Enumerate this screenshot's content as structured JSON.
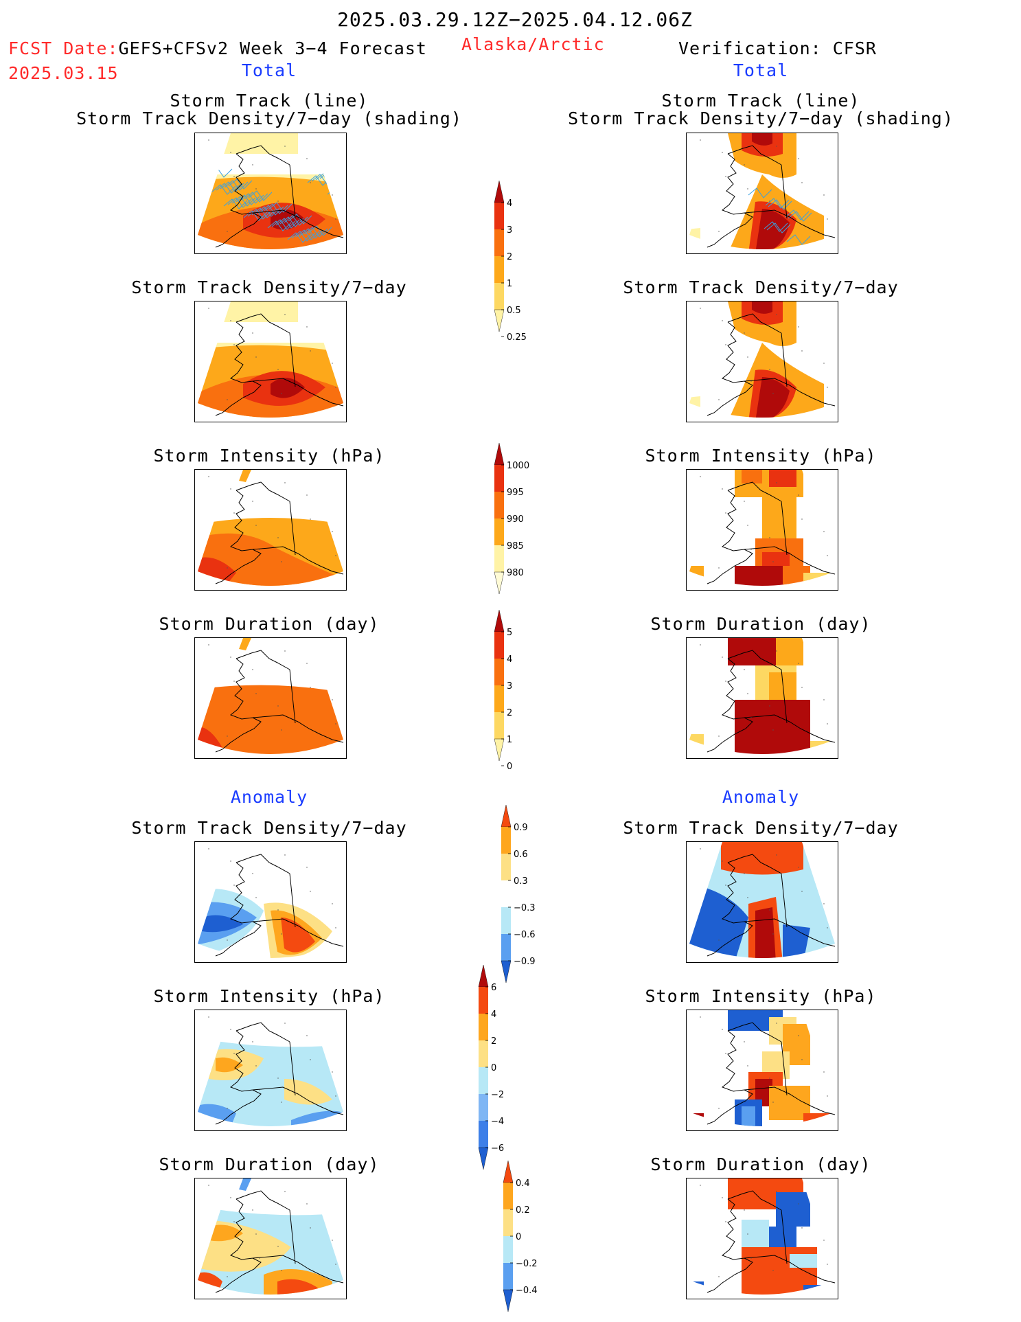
{
  "header": {
    "title": "2025.03.29.12Z−2025.04.12.06Z",
    "fcst_label": "FCST Date:",
    "forecast_name": "GEFS+CFSv2 Week 3−4 Forecast",
    "region": "Alaska/Arctic",
    "verification": "Verification: CFSR",
    "fcst_date": "2025.03.15",
    "total_left": "Total",
    "total_right": "Total",
    "anomaly_left": "Anomaly",
    "anomaly_right": "Anomaly"
  },
  "colors": {
    "red_text": "#ff2a2a",
    "blue_text": "#1a3cff",
    "total_scale": [
      "#fff3a6",
      "#fdd862",
      "#fda81a",
      "#f9700f",
      "#e93210",
      "#b00a0a"
    ],
    "anomaly_scale": [
      "#1e5fd1",
      "#5a9ff0",
      "#b7e8f6",
      "#ffffff",
      "#fde085",
      "#fea61e",
      "#f44a10"
    ]
  },
  "panels": {
    "left_titles": [
      "Storm Track (line)",
      "Storm Track Density/7−day (shading)",
      "Storm Track Density/7−day",
      "Storm Intensity (hPa)",
      "Storm Duration (day)",
      "Storm Track Density/7−day",
      "Storm Intensity (hPa)",
      "Storm Duration (day)"
    ],
    "right_titles": [
      "Storm Track (line)",
      "Storm Track Density/7−day (shading)",
      "Storm Track Density/7−day",
      "Storm Intensity (hPa)",
      "Storm Duration (day)",
      "Storm Track Density/7−day",
      "Storm Intensity (hPa)",
      "Storm Duration (day)"
    ]
  },
  "colorbars": {
    "density_total": [
      "4",
      "3",
      "2",
      "1",
      "0.5",
      "0.25"
    ],
    "intensity_total": [
      "1000",
      "995",
      "990",
      "985",
      "980"
    ],
    "duration_total": [
      "5",
      "4",
      "3",
      "2",
      "1",
      "0"
    ],
    "density_anom": [
      "0.9",
      "0.6",
      "0.3",
      "−0.3",
      "−0.6",
      "−0.9"
    ],
    "intensity_anom": [
      "6",
      "4",
      "2",
      "0",
      "−2",
      "−4",
      "−6"
    ],
    "duration_anom": [
      "0.4",
      "0.2",
      "0",
      "−0.2",
      "−0.4"
    ]
  }
}
